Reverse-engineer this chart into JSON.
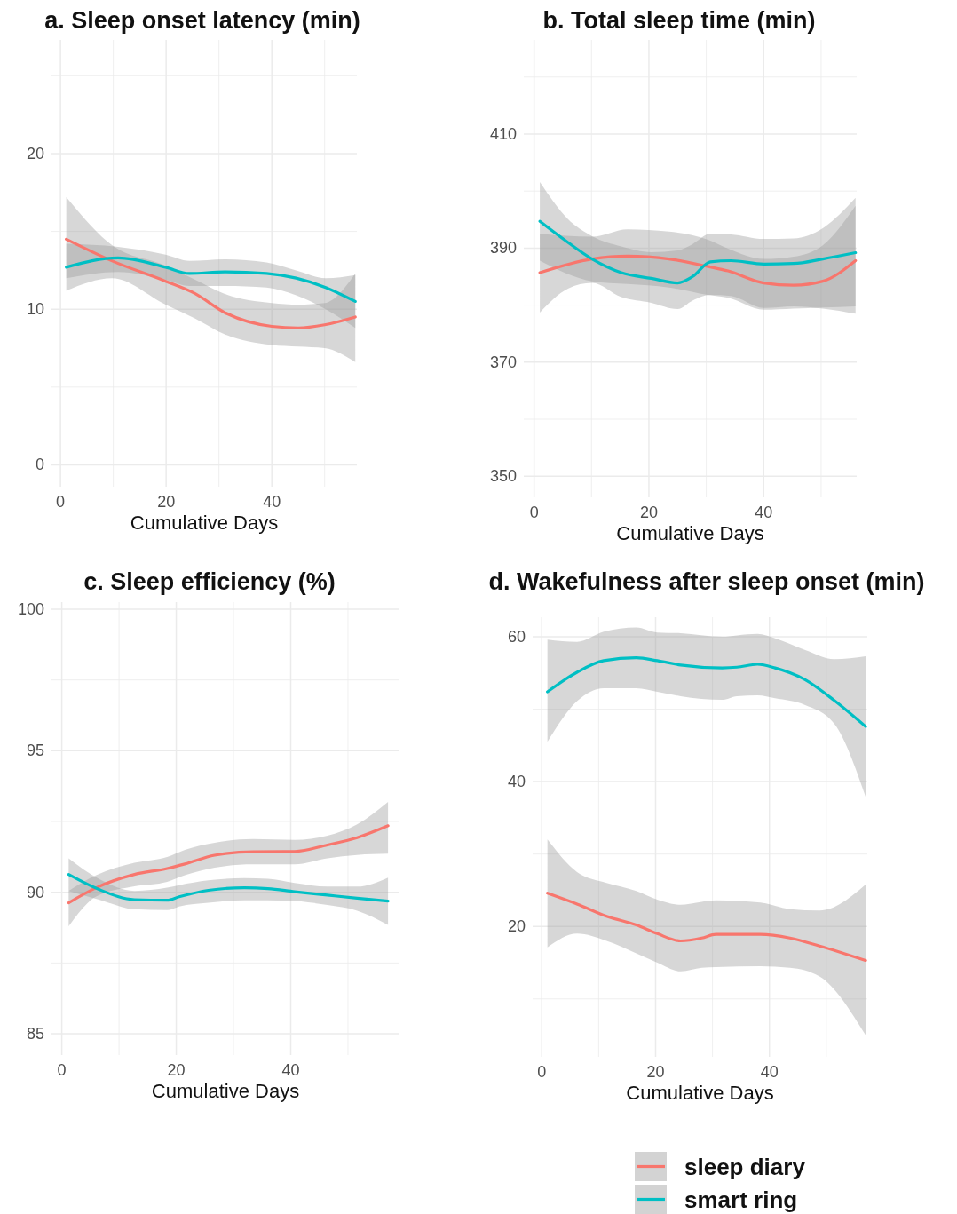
{
  "chart_data": [
    {
      "type": "line",
      "title": "a. Sleep onset latency (min)",
      "xlabel": "Cumulative Days",
      "xlim": [
        -1.7,
        56.1
      ],
      "ylim": [
        -1.4,
        27.3
      ],
      "xticks": [
        0,
        {
          "value": 10,
          "label": null
        },
        20,
        {
          "value": 30,
          "label": null
        },
        40,
        {
          "value": 50,
          "label": null
        }
      ],
      "yticks": [
        0,
        {
          "value": 5,
          "label": null
        },
        10,
        {
          "value": 15,
          "label": null
        },
        20,
        {
          "value": 25,
          "label": null
        }
      ],
      "grid": true,
      "legend": false,
      "series": [
        {
          "color": "#f8766d",
          "x": [
            1.1,
            9.8,
            19.9,
            25.5,
            31,
            40,
            45,
            50,
            55.8
          ],
          "values": [
            14.5,
            13.1,
            11.8,
            11.0,
            9.8,
            8.9,
            8.8,
            9.0,
            9.5
          ],
          "lower": [
            11.2,
            12.0,
            10.3,
            9.4,
            8.4,
            7.7,
            7.6,
            7.5,
            6.6
          ],
          "upper": [
            17.2,
            14.1,
            12.8,
            11.9,
            11.0,
            10.4,
            10.3,
            10.4,
            12.3
          ]
        },
        {
          "color": "#00bfc4",
          "x": [
            1.1,
            10.9,
            19.9,
            24.4,
            31.1,
            39,
            44.6,
            50.2,
            55.8
          ],
          "values": [
            12.7,
            13.3,
            12.7,
            12.3,
            12.4,
            12.3,
            12.0,
            11.4,
            10.5
          ],
          "lower": [
            12.0,
            12.4,
            11.9,
            11.5,
            11.5,
            11.4,
            10.9,
            10.0,
            8.8
          ],
          "upper": [
            14.2,
            14.0,
            13.5,
            13.1,
            13.2,
            13.0,
            12.5,
            12.0,
            12.2
          ]
        }
      ]
    },
    {
      "type": "line",
      "title": "b. Total sleep time (min)",
      "xlabel": "Cumulative Days",
      "xlim": [
        -1.8,
        56.2
      ],
      "ylim": [
        346.3,
        426.5
      ],
      "xticks": [
        0,
        {
          "value": 10,
          "label": null
        },
        20,
        {
          "value": 30,
          "label": null
        },
        40,
        {
          "value": 50,
          "label": null
        }
      ],
      "yticks": [
        350,
        {
          "value": 360,
          "label": null
        },
        370,
        {
          "value": 380,
          "label": null
        },
        390,
        {
          "value": 400,
          "label": null
        },
        410,
        {
          "value": 420,
          "label": null
        }
      ],
      "grid": true,
      "legend": false,
      "series": [
        {
          "color": "#f8766d",
          "x": [
            1.0,
            10.1,
            16.3,
            23.5,
            30.2,
            33.8,
            40,
            45.2,
            50.3,
            56
          ],
          "values": [
            385.7,
            388.1,
            388.6,
            388.1,
            386.8,
            386.0,
            383.9,
            383.5,
            384.2,
            387.8
          ],
          "lower": [
            387.8,
            384.2,
            383.7,
            383.1,
            381.8,
            381.3,
            379.2,
            379.4,
            379.6,
            379.8
          ],
          "upper": [
            392.5,
            392.0,
            393.3,
            392.9,
            391.5,
            389.9,
            388.1,
            388.5,
            390.5,
            397.4
          ]
        },
        {
          "color": "#00bfc4",
          "x": [
            1.0,
            5.9,
            10.1,
            15.2,
            20.4,
            25.0,
            27.6,
            30.7,
            34.3,
            40,
            45.2,
            50.3,
            56
          ],
          "values": [
            394.7,
            391.0,
            388.1,
            385.7,
            384.7,
            383.9,
            385.0,
            387.6,
            387.8,
            387.2,
            387.3,
            388.1,
            389.2
          ],
          "lower": [
            378.7,
            382.9,
            383.9,
            381.4,
            380.4,
            379.3,
            380.8,
            381.8,
            381.6,
            379.5,
            379.8,
            379.4,
            378.5
          ],
          "upper": [
            401.6,
            395.1,
            392.1,
            390.3,
            389.3,
            389.6,
            390.7,
            392.5,
            392.4,
            391.6,
            391.7,
            393.5,
            398.8
          ]
        }
      ]
    },
    {
      "type": "line",
      "title": "c. Sleep efficiency (%)",
      "xlabel": "Cumulative Days",
      "xlim": [
        -1.8,
        59
      ],
      "ylim": [
        84.25,
        100.25
      ],
      "xticks": [
        0,
        {
          "value": 10,
          "label": null
        },
        20,
        {
          "value": 30,
          "label": null
        },
        40,
        {
          "value": 50,
          "label": null
        }
      ],
      "yticks": [
        85,
        {
          "value": 87.5,
          "label": null
        },
        90,
        {
          "value": 92.5,
          "label": null
        },
        95,
        {
          "value": 97.5,
          "label": null
        },
        100
      ],
      "grid": true,
      "legend": false,
      "series": [
        {
          "color": "#f8766d",
          "x": [
            1.2,
            6.0,
            12.7,
            18.4,
            21.5,
            26.7,
            33.4,
            40.7,
            46.4,
            51.6,
            57.0
          ],
          "values": [
            89.63,
            90.16,
            90.63,
            90.84,
            91.0,
            91.31,
            91.43,
            91.44,
            91.67,
            91.93,
            92.35
          ],
          "lower": [
            88.8,
            89.85,
            90.21,
            90.37,
            90.6,
            90.87,
            90.99,
            90.99,
            91.2,
            91.32,
            91.36
          ],
          "upper": [
            90.05,
            90.6,
            91.04,
            91.25,
            91.5,
            91.75,
            91.88,
            91.85,
            92.0,
            92.4,
            93.19
          ]
        },
        {
          "color": "#00bfc4",
          "x": [
            1.2,
            6.5,
            12.7,
            18.4,
            20.5,
            25.6,
            31.9,
            36.0,
            40.7,
            46.4,
            51.6,
            57.0
          ],
          "values": [
            90.63,
            90.1,
            89.74,
            89.72,
            89.84,
            90.07,
            90.16,
            90.13,
            90.02,
            89.9,
            89.79,
            89.69
          ],
          "lower": [
            90.05,
            89.74,
            89.4,
            89.37,
            89.5,
            89.63,
            89.72,
            89.72,
            89.69,
            89.55,
            89.35,
            88.85
          ],
          "upper": [
            91.2,
            90.47,
            90.05,
            90.16,
            90.25,
            90.42,
            90.5,
            90.48,
            90.33,
            90.2,
            90.2,
            90.52
          ]
        }
      ]
    },
    {
      "type": "line",
      "title": "d. Wakefulness after sleep onset (min)",
      "xlabel": "Cumulative Days",
      "xlim": [
        -1.6,
        57.2
      ],
      "ylim": [
        2,
        62.7
      ],
      "xticks": [
        0,
        {
          "value": 10,
          "label": null
        },
        20,
        {
          "value": 30,
          "label": null
        },
        40,
        {
          "value": 50,
          "label": null
        }
      ],
      "yticks": [
        {
          "value": 10,
          "label": null
        },
        20,
        {
          "value": 30,
          "label": null
        },
        40,
        {
          "value": 50,
          "label": null
        },
        60
      ],
      "grid": true,
      "legend": "bottom right",
      "series": [
        {
          "name": "sleep diary",
          "color": "#f8766d",
          "x": [
            1.0,
            6.2,
            11.4,
            16.6,
            20.3,
            24.4,
            28.1,
            30.6,
            38.4,
            43.6,
            48.8,
            56.9
          ],
          "values": [
            24.6,
            23.1,
            21.4,
            20.2,
            19.0,
            18.0,
            18.4,
            18.9,
            18.9,
            18.4,
            17.3,
            15.3
          ],
          "lower": [
            17.1,
            19.0,
            18.0,
            16.3,
            15.0,
            13.8,
            14.3,
            14.4,
            14.5,
            14.3,
            13.1,
            5.0
          ],
          "upper": [
            32.0,
            27.5,
            26.0,
            24.9,
            23.7,
            23.0,
            23.4,
            23.6,
            23.3,
            22.4,
            22.2,
            25.8
          ]
        },
        {
          "name": "smart ring",
          "color": "#00bfc4",
          "x": [
            1.0,
            6.2,
            10.9,
            16.6,
            20.3,
            24.4,
            31.7,
            34.3,
            37.9,
            41.0,
            46.2,
            51.4,
            56.9
          ],
          "values": [
            52.4,
            55.1,
            56.7,
            57.1,
            56.7,
            56.1,
            55.7,
            55.8,
            56.2,
            55.7,
            54.1,
            51.2,
            47.6
          ],
          "lower": [
            45.5,
            51.1,
            52.9,
            52.9,
            52.4,
            51.8,
            51.3,
            51.8,
            51.9,
            51.5,
            50.6,
            48.0,
            37.9
          ],
          "upper": [
            59.6,
            59.3,
            60.7,
            61.3,
            60.6,
            60.5,
            60.0,
            60.2,
            60.4,
            59.8,
            58.2,
            56.9,
            57.3
          ]
        }
      ]
    }
  ]
}
